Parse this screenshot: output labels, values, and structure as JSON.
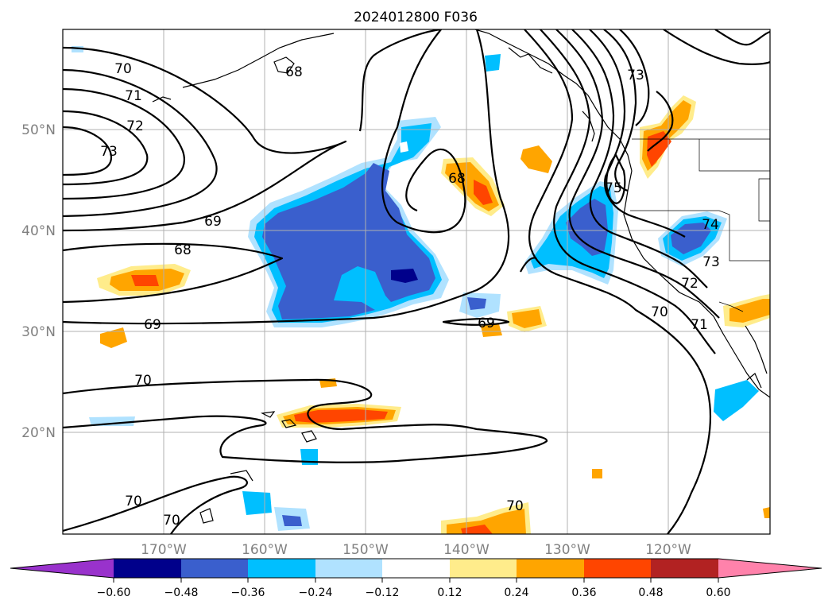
{
  "title": "2024012800 F036",
  "x_ticks": [
    "170°W",
    "160°W",
    "150°W",
    "140°W",
    "130°W",
    "120°W"
  ],
  "y_ticks": [
    "50°N",
    "40°N",
    "30°N",
    "20°N"
  ],
  "colorbar": {
    "labels": [
      "−0.60",
      "−0.48",
      "−0.36",
      "−0.24",
      "−0.12",
      "0.12",
      "0.24",
      "0.36",
      "0.48",
      "0.60"
    ],
    "colors": [
      "#9932cc",
      "#00008b",
      "#3a5fcd",
      "#00bfff",
      "#b0e2ff",
      "#ffffff",
      "#ffec8b",
      "#ffa500",
      "#ff4500",
      "#b22222",
      "#ff82ab"
    ]
  },
  "contour_labels": [
    "70",
    "71",
    "72",
    "73",
    "68",
    "69",
    "68",
    "69",
    "70",
    "70",
    "70",
    "68",
    "69",
    "75",
    "74",
    "73",
    "72",
    "70",
    "71",
    "73",
    "70"
  ],
  "fill_colors": {
    "neg_light": "#b0e2ff",
    "neg_mid": "#00bfff",
    "neg_strong": "#3a5fcd",
    "neg_max": "#00008b",
    "pos_light": "#ffec8b",
    "pos_mid": "#ffa500",
    "pos_strong": "#ff4500",
    "pos_max": "#b22222"
  }
}
